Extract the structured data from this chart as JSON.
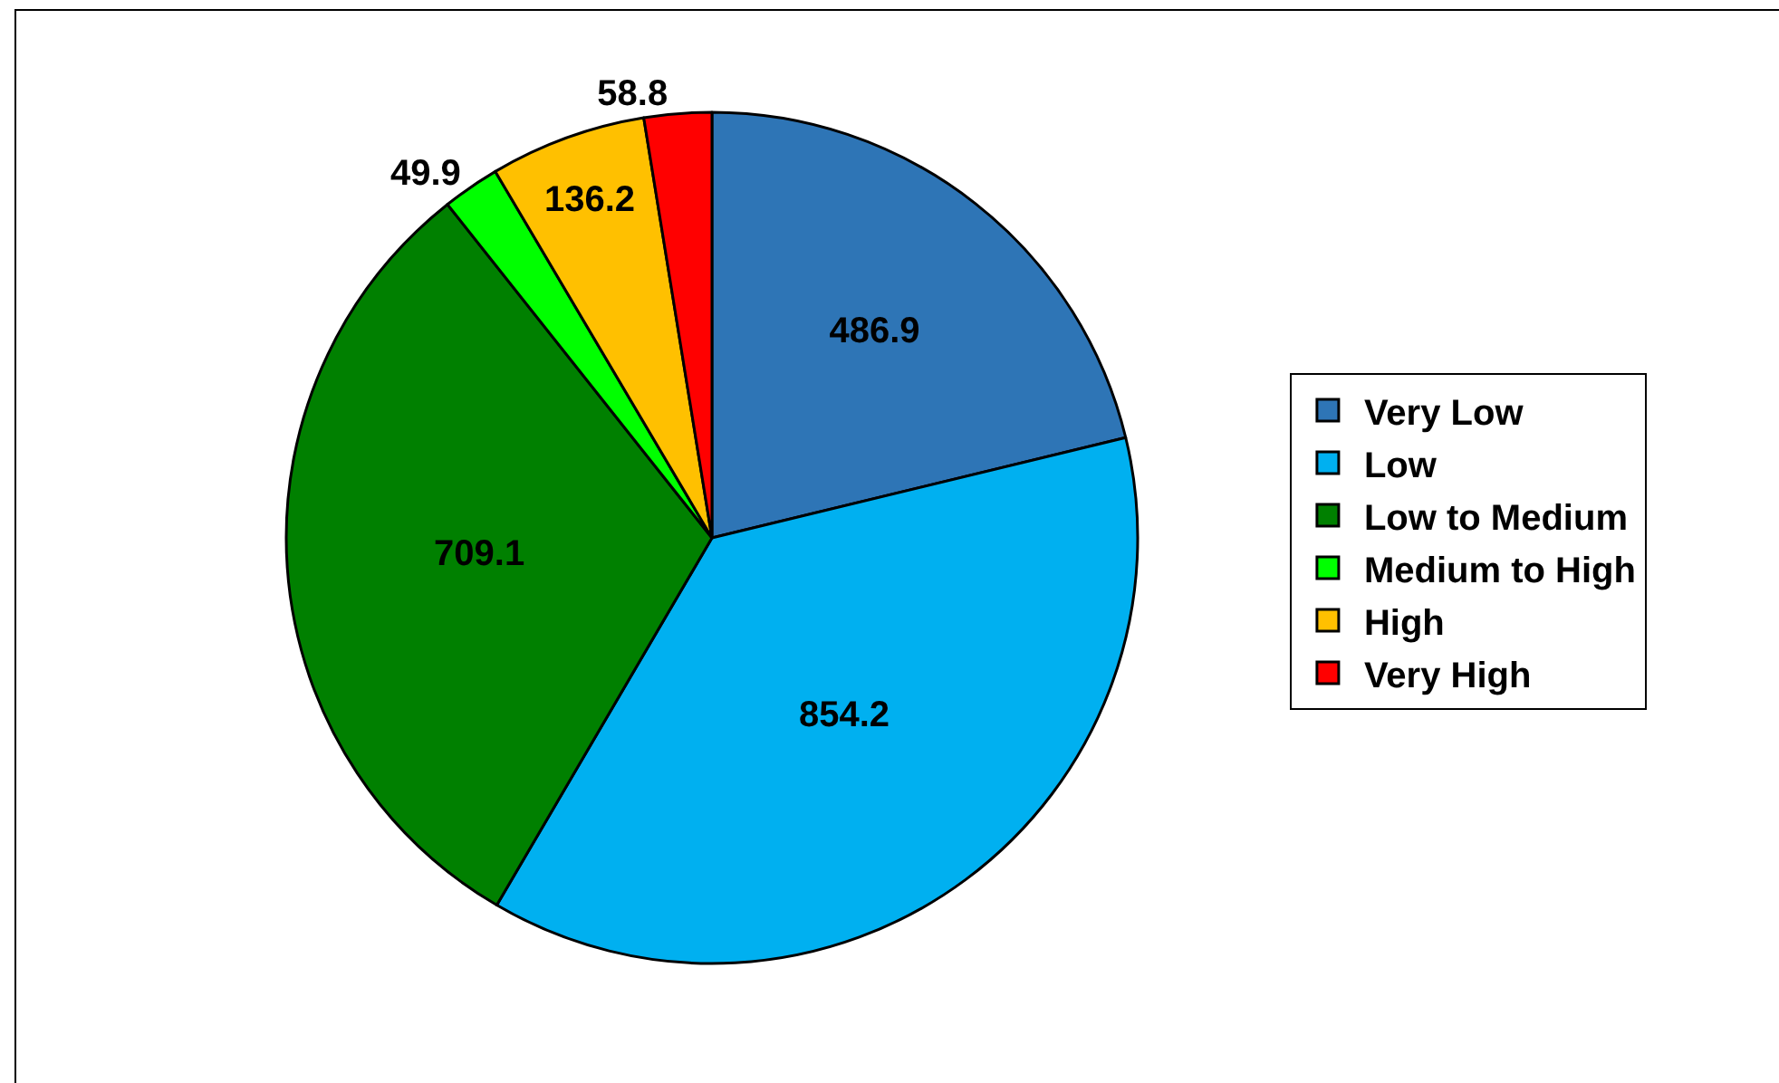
{
  "chart_data": {
    "type": "pie",
    "categories": [
      "Very Low",
      "Low",
      "Low to Medium",
      "Medium to High",
      "High",
      "Very High"
    ],
    "values": [
      486.9,
      854.2,
      709.1,
      49.9,
      136.2,
      58.8
    ],
    "colors": [
      "#2e75b6",
      "#00b0f0",
      "#008000",
      "#00ff00",
      "#ffc000",
      "#ff0000"
    ],
    "data_labels": true,
    "legend": "right"
  }
}
